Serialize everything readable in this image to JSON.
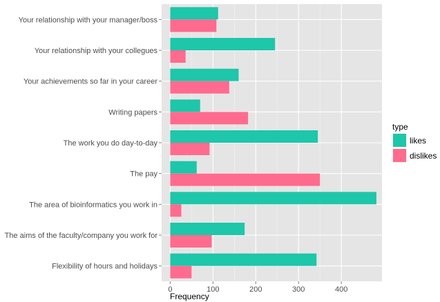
{
  "chart_data": {
    "type": "bar",
    "orientation": "horizontal",
    "categories": [
      "Your relationship with your manager/boss",
      "Your relationship with your collegues",
      "Your achievements so far in your career",
      "Writing papers",
      "The work you do day-to-day",
      "The pay",
      "The area of bioinformatics you work in",
      "The aims of the faculty/company you work for",
      "Flexibility of hours and holidays"
    ],
    "series": [
      {
        "name": "likes",
        "color": "#1ec6aa",
        "values": [
          112,
          245,
          160,
          70,
          345,
          62,
          482,
          174,
          342
        ]
      },
      {
        "name": "dislikes",
        "color": "#ff6b8e",
        "values": [
          108,
          36,
          138,
          182,
          92,
          350,
          26,
          97,
          50
        ]
      }
    ],
    "xlabel": "Frequency",
    "ylabel": "",
    "xlim": [
      -20,
      495
    ],
    "xticks": [
      0,
      100,
      200,
      300,
      400
    ],
    "grid": true,
    "legend": {
      "title": "type",
      "placement": "right"
    }
  }
}
